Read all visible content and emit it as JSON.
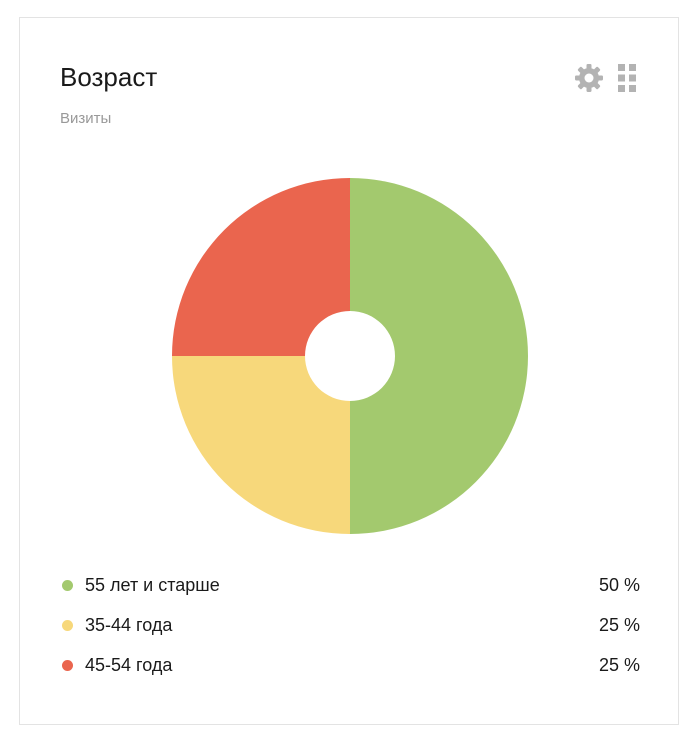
{
  "widget": {
    "title": "Возраст",
    "subtitle": "Визиты",
    "settings_icon": "gear-icon",
    "drag_icon": "drag-handle-icon"
  },
  "chart_data": {
    "type": "pie",
    "donut": true,
    "title": "Возраст",
    "subtitle": "Визиты",
    "legend_position": "bottom",
    "categories": [
      "55 лет и старше",
      "35-44 года",
      "45-54 года"
    ],
    "values": [
      50,
      25,
      25
    ],
    "value_labels": [
      "50 %",
      "25 %",
      "25 %"
    ],
    "colors": [
      "#a3c96e",
      "#f7d87b",
      "#ea654e"
    ]
  }
}
